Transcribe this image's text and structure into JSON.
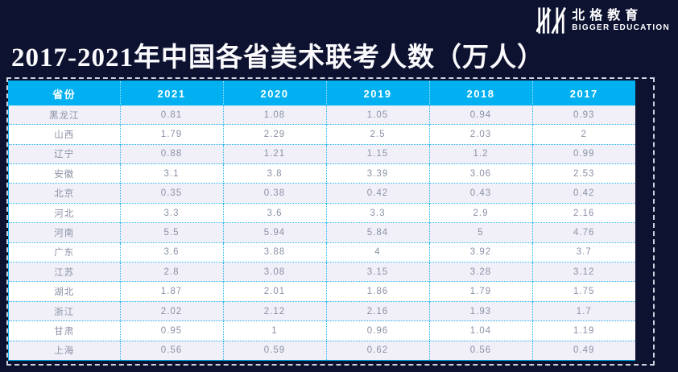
{
  "title": "2017-2021年中国各省美术联考人数（万人）",
  "logo": {
    "icon": "bigger-education-logo",
    "name_cn": "北格教育",
    "name_en": "BIGGER EDUCATION"
  },
  "colors": {
    "background": "#0e1231",
    "header_bg": "#00b0f0",
    "header_text": "#ffffff",
    "row_bg": "#ffffff",
    "row_alt_bg": "#f1f0f8",
    "cell_text": "#8a91a6",
    "grid": "#29b6f0",
    "table_border": "#00b0f0",
    "selection_dash": "#cdd2de",
    "title_text": "#fbfbfd"
  },
  "chart_data": {
    "type": "table",
    "title": "2017-2021年中国各省美术联考人数（万人）",
    "columns": [
      "省份",
      "2021",
      "2020",
      "2019",
      "2018",
      "2017"
    ],
    "rows": [
      [
        "黑龙江",
        0.81,
        1.08,
        1.05,
        0.94,
        0.93
      ],
      [
        "山西",
        1.79,
        2.29,
        2.5,
        2.03,
        2
      ],
      [
        "辽宁",
        0.88,
        1.21,
        1.15,
        1.2,
        0.99
      ],
      [
        "安徽",
        3.1,
        3.8,
        3.39,
        3.06,
        2.53
      ],
      [
        "北京",
        0.35,
        0.38,
        0.42,
        0.43,
        0.42
      ],
      [
        "河北",
        3.3,
        3.6,
        3.3,
        2.9,
        2.16
      ],
      [
        "河南",
        5.5,
        5.94,
        5.84,
        5,
        4.76
      ],
      [
        "广东",
        3.6,
        3.88,
        4,
        3.92,
        3.7
      ],
      [
        "江苏",
        2.8,
        3.08,
        3.15,
        3.28,
        3.12
      ],
      [
        "湖北",
        1.87,
        2.01,
        1.86,
        1.79,
        1.75
      ],
      [
        "浙江",
        2.02,
        2.12,
        2.16,
        1.93,
        1.7
      ],
      [
        "甘肃",
        0.95,
        1,
        0.96,
        1.04,
        1.19
      ],
      [
        "上海",
        0.56,
        0.59,
        0.62,
        0.56,
        0.49
      ]
    ]
  }
}
